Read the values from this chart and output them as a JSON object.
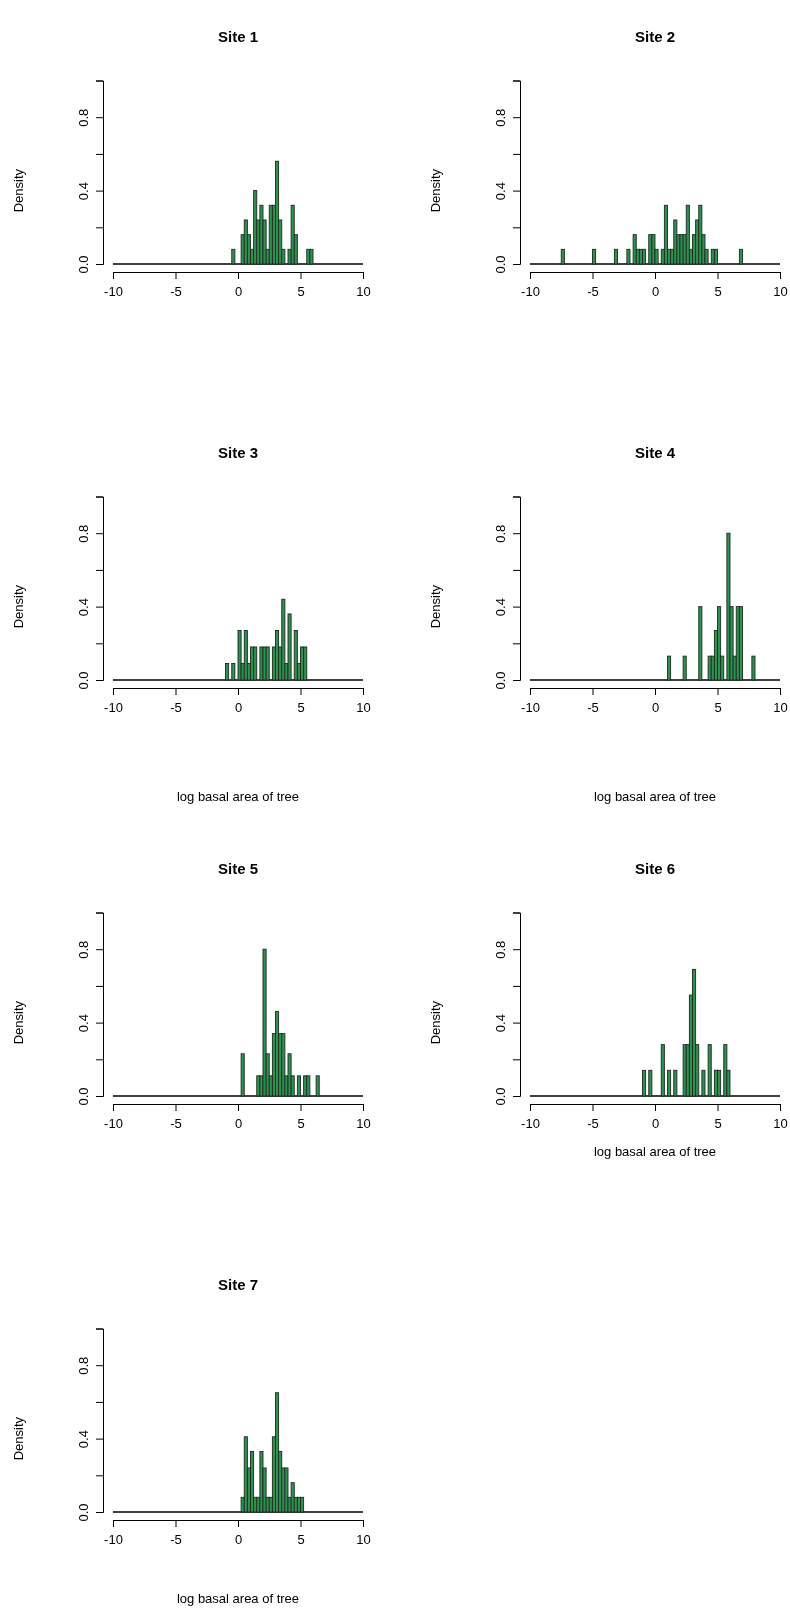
{
  "chart_data": [
    {
      "type": "histogram",
      "title": "Site 1",
      "ylabel": "Density",
      "color": "#2f9150",
      "xlim": [
        -10,
        10
      ],
      "xticks": [
        -10,
        -5,
        0,
        5,
        10
      ],
      "ylim": [
        0,
        1
      ],
      "yticks": [
        {
          "value": 0,
          "label": "0.0"
        },
        {
          "value": 0.2,
          "label": null
        },
        {
          "value": 0.4,
          "label": "0.4"
        },
        {
          "value": 0.6,
          "label": null
        },
        {
          "value": 0.8,
          "label": "0.8"
        },
        {
          "value": 1,
          "label": null
        }
      ],
      "ref_lines": [
        {
          "axis": "y",
          "value": 0
        }
      ],
      "bins": [
        -0.5,
        -0.25,
        0,
        0.25,
        0.5,
        0.75,
        1,
        1.25,
        1.5,
        1.75,
        2,
        2.25,
        2.5,
        2.75,
        3,
        3.25,
        3.5,
        3.75,
        4,
        4.25,
        4.5,
        4.75,
        5,
        5.25,
        5.5,
        5.75,
        6
      ],
      "values": [
        0.08,
        0,
        0,
        0.16,
        0.24,
        0.16,
        0.08,
        0.4,
        0.24,
        0.32,
        0.24,
        0.08,
        0.32,
        0.32,
        0.56,
        0.24,
        0.08,
        0,
        0.08,
        0.32,
        0.16,
        0,
        0,
        0,
        0.08,
        0.08
      ]
    },
    {
      "type": "histogram",
      "title": "Site 2",
      "ylabel": "Density",
      "color": "#2f9150",
      "xlim": [
        -10,
        10
      ],
      "xticks": [
        -10,
        -5,
        0,
        5,
        10
      ],
      "ylim": [
        0,
        1
      ],
      "yticks": [
        {
          "value": 0,
          "label": "0.0"
        },
        {
          "value": 0.2,
          "label": null
        },
        {
          "value": 0.4,
          "label": "0.4"
        },
        {
          "value": 0.6,
          "label": null
        },
        {
          "value": 0.8,
          "label": "0.8"
        },
        {
          "value": 1,
          "label": null
        }
      ],
      "ref_lines": [
        {
          "axis": "y",
          "value": 0
        }
      ],
      "bins": [
        -7.5,
        -7.25,
        -7,
        -6.75,
        -6.5,
        -6.25,
        -6,
        -5.75,
        -5.5,
        -5.25,
        -5,
        -4.75,
        -4.5,
        -4.25,
        -4,
        -3.75,
        -3.5,
        -3.25,
        -3,
        -2.75,
        -2.5,
        -2.25,
        -2,
        -1.75,
        -1.5,
        -1.25,
        -1,
        -0.75,
        -0.5,
        -0.25,
        0,
        0.25,
        0.5,
        0.75,
        1,
        1.25,
        1.5,
        1.75,
        2,
        2.25,
        2.5,
        2.75,
        3,
        3.25,
        3.5,
        3.75,
        4,
        4.25,
        4.5,
        4.75,
        5,
        5.25,
        5.5,
        5.75,
        6,
        6.25,
        6.5,
        6.75,
        7
      ],
      "values": [
        0.08,
        0,
        0,
        0,
        0,
        0,
        0,
        0,
        0,
        0,
        0.08,
        0,
        0,
        0,
        0,
        0,
        0,
        0.08,
        0,
        0,
        0,
        0.08,
        0,
        0.16,
        0.08,
        0.08,
        0.08,
        0,
        0.16,
        0.16,
        0.08,
        0,
        0.08,
        0.32,
        0.08,
        0.08,
        0.24,
        0.16,
        0.16,
        0.16,
        0.32,
        0.08,
        0.16,
        0.24,
        0.32,
        0.16,
        0.08,
        0,
        0.08,
        0.08,
        0,
        0,
        0,
        0,
        0,
        0,
        0,
        0.08
      ]
    },
    {
      "type": "histogram",
      "title": "Site 3",
      "xlabel": "log basal area of tree",
      "ylabel": "Density",
      "color": "#2f9150",
      "xlim": [
        -10,
        10
      ],
      "xticks": [
        -10,
        -5,
        0,
        5,
        10
      ],
      "ylim": [
        0,
        1
      ],
      "yticks": [
        {
          "value": 0,
          "label": "0.0"
        },
        {
          "value": 0.2,
          "label": null
        },
        {
          "value": 0.4,
          "label": "0.4"
        },
        {
          "value": 0.6,
          "label": null
        },
        {
          "value": 0.8,
          "label": "0.8"
        },
        {
          "value": 1,
          "label": null
        }
      ],
      "ref_lines": [
        {
          "axis": "y",
          "value": 0
        }
      ],
      "bins": [
        -1,
        -0.75,
        -0.5,
        -0.25,
        0,
        0.25,
        0.5,
        0.75,
        1,
        1.25,
        1.5,
        1.75,
        2,
        2.25,
        2.5,
        2.75,
        3,
        3.25,
        3.5,
        3.75,
        4,
        4.25,
        4.5,
        4.75,
        5,
        5.25,
        5.5
      ],
      "values": [
        0.09,
        0,
        0.09,
        0,
        0.27,
        0.09,
        0.27,
        0.09,
        0.18,
        0.18,
        0,
        0.18,
        0.18,
        0.18,
        0,
        0.18,
        0.27,
        0.18,
        0.44,
        0.09,
        0.36,
        0,
        0.27,
        0.09,
        0.18,
        0.18
      ]
    },
    {
      "type": "histogram",
      "title": "Site 4",
      "xlabel": "log basal area of tree",
      "ylabel": "Density",
      "color": "#2f9150",
      "xlim": [
        -10,
        10
      ],
      "xticks": [
        -10,
        -5,
        0,
        5,
        10
      ],
      "ylim": [
        0,
        1
      ],
      "yticks": [
        {
          "value": 0,
          "label": "0.0"
        },
        {
          "value": 0.2,
          "label": null
        },
        {
          "value": 0.4,
          "label": "0.4"
        },
        {
          "value": 0.6,
          "label": null
        },
        {
          "value": 0.8,
          "label": "0.8"
        },
        {
          "value": 1,
          "label": null
        }
      ],
      "ref_lines": [
        {
          "axis": "y",
          "value": 0
        }
      ],
      "bins": [
        1,
        1.25,
        1.5,
        1.75,
        2,
        2.25,
        2.5,
        2.75,
        3,
        3.25,
        3.5,
        3.75,
        4,
        4.25,
        4.5,
        4.75,
        5,
        5.25,
        5.5,
        5.75,
        6,
        6.25,
        6.5,
        6.75,
        7,
        7.25,
        7.5,
        7.75,
        8
      ],
      "values": [
        0.13,
        0,
        0,
        0,
        0,
        0.13,
        0,
        0,
        0,
        0,
        0.4,
        0,
        0,
        0.13,
        0.13,
        0.27,
        0.4,
        0.13,
        0,
        0.8,
        0.4,
        0.13,
        0.4,
        0.4,
        0,
        0,
        0,
        0.13
      ]
    },
    {
      "type": "histogram",
      "title": "Site 5",
      "ylabel": "Density",
      "color": "#2f9150",
      "xlim": [
        -10,
        10
      ],
      "xticks": [
        -10,
        -5,
        0,
        5,
        10
      ],
      "ylim": [
        0,
        1
      ],
      "yticks": [
        {
          "value": 0,
          "label": "0.0"
        },
        {
          "value": 0.2,
          "label": null
        },
        {
          "value": 0.4,
          "label": "0.4"
        },
        {
          "value": 0.6,
          "label": null
        },
        {
          "value": 0.8,
          "label": "0.8"
        },
        {
          "value": 1,
          "label": null
        }
      ],
      "ref_lines": [
        {
          "axis": "y",
          "value": 0
        }
      ],
      "bins": [
        0.25,
        0.5,
        0.75,
        1,
        1.25,
        1.5,
        1.75,
        2,
        2.25,
        2.5,
        2.75,
        3,
        3.25,
        3.5,
        3.75,
        4,
        4.25,
        4.5,
        4.75,
        5,
        5.25,
        5.5,
        5.75,
        6,
        6.25,
        6.5
      ],
      "values": [
        0.23,
        0,
        0,
        0,
        0,
        0.11,
        0.11,
        0.8,
        0.23,
        0.11,
        0.34,
        0.46,
        0.34,
        0.34,
        0.11,
        0.23,
        0.11,
        0,
        0.11,
        0,
        0.11,
        0.11,
        0,
        0,
        0.11
      ]
    },
    {
      "type": "histogram",
      "title": "Site 6",
      "xlabel": "log basal area of tree",
      "ylabel": "Density",
      "color": "#2f9150",
      "xlim": [
        -10,
        10
      ],
      "xticks": [
        -10,
        -5,
        0,
        5,
        10
      ],
      "ylim": [
        0,
        1
      ],
      "yticks": [
        {
          "value": 0,
          "label": "0.0"
        },
        {
          "value": 0.2,
          "label": null
        },
        {
          "value": 0.4,
          "label": "0.4"
        },
        {
          "value": 0.6,
          "label": null
        },
        {
          "value": 0.8,
          "label": "0.8"
        },
        {
          "value": 1,
          "label": null
        }
      ],
      "ref_lines": [
        {
          "axis": "y",
          "value": 0
        }
      ],
      "bins": [
        -1,
        -0.75,
        -0.5,
        -0.25,
        0,
        0.25,
        0.5,
        0.75,
        1,
        1.25,
        1.5,
        1.75,
        2,
        2.25,
        2.5,
        2.75,
        3,
        3.25,
        3.5,
        3.75,
        4,
        4.25,
        4.5,
        4.75,
        5,
        5.25,
        5.5,
        5.75,
        6
      ],
      "values": [
        0.14,
        0,
        0.14,
        0,
        0,
        0,
        0.28,
        0,
        0.14,
        0,
        0.14,
        0,
        0,
        0.28,
        0.28,
        0.55,
        0.69,
        0.28,
        0,
        0.14,
        0,
        0.28,
        0,
        0.14,
        0.14,
        0,
        0.28,
        0.14
      ]
    },
    {
      "type": "histogram",
      "title": "Site 7",
      "xlabel": "log basal area of tree",
      "ylabel": "Density",
      "color": "#2f9150",
      "xlim": [
        -10,
        10
      ],
      "xticks": [
        -10,
        -5,
        0,
        5,
        10
      ],
      "ylim": [
        0,
        1
      ],
      "yticks": [
        {
          "value": 0,
          "label": "0.0"
        },
        {
          "value": 0.2,
          "label": null
        },
        {
          "value": 0.4,
          "label": "0.4"
        },
        {
          "value": 0.6,
          "label": null
        },
        {
          "value": 0.8,
          "label": "0.8"
        },
        {
          "value": 1,
          "label": null
        }
      ],
      "ref_lines": [
        {
          "axis": "y",
          "value": 0
        }
      ],
      "bins": [
        0.25,
        0.5,
        0.75,
        1,
        1.25,
        1.5,
        1.75,
        2,
        2.25,
        2.5,
        2.75,
        3,
        3.25,
        3.5,
        3.75,
        4,
        4.25,
        4.5,
        4.75,
        5,
        5.25
      ],
      "values": [
        0.08,
        0.41,
        0.24,
        0.33,
        0.08,
        0.08,
        0.33,
        0.24,
        0.08,
        0.08,
        0.41,
        0.65,
        0.33,
        0.24,
        0.24,
        0.08,
        0.16,
        0.08,
        0.08,
        0.08
      ]
    }
  ]
}
